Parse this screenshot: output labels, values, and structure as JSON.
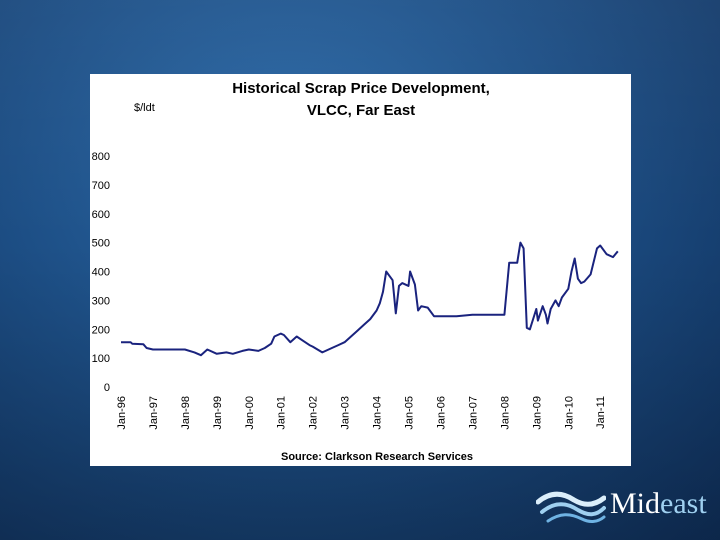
{
  "slide": {
    "brand_prefix": "Mid",
    "brand_suffix": "east",
    "colors": {
      "background": "#1d4f86",
      "panel": "#ffffff",
      "line": "#1a237e",
      "brand_accent": "#9fd0f0"
    },
    "icons": [
      "wave-logo-icon"
    ]
  },
  "chart_data": {
    "type": "line",
    "title_line1": "Historical Scrap Price Development,",
    "title_line2": "VLCC, Far East",
    "ylabel": "$/ldt",
    "source": "Source: Clarkson Research Services",
    "ylim": [
      0,
      800
    ],
    "yticks": [
      "0",
      "100",
      "200",
      "300",
      "400",
      "500",
      "600",
      "700",
      "800"
    ],
    "xlim": [
      1996.0,
      2011.65
    ],
    "xticks": [
      "Jan-96",
      "Jan-97",
      "Jan-98",
      "Jan-99",
      "Jan-00",
      "Jan-01",
      "Jan-02",
      "Jan-03",
      "Jan-04",
      "Jan-05",
      "Jan-06",
      "Jan-07",
      "Jan-08",
      "Jan-09",
      "Jan-10",
      "Jan-11"
    ],
    "series": [
      {
        "name": "VLCC Far East scrap price ($/ldt)",
        "x": [
          1996.0,
          1996.3,
          1996.35,
          1996.7,
          1996.8,
          1997.0,
          1997.5,
          1998.0,
          1998.3,
          1998.5,
          1998.7,
          1999.0,
          1999.3,
          1999.5,
          1999.8,
          2000.0,
          2000.3,
          2000.5,
          2000.7,
          2000.8,
          2001.0,
          2001.1,
          2001.3,
          2001.5,
          2001.7,
          2001.9,
          2002.0,
          2002.3,
          2002.6,
          2002.8,
          2003.0,
          2003.2,
          2003.4,
          2003.6,
          2003.8,
          2004.0,
          2004.1,
          2004.2,
          2004.3,
          2004.5,
          2004.6,
          2004.7,
          2004.8,
          2005.0,
          2005.05,
          2005.2,
          2005.3,
          2005.4,
          2005.6,
          2005.8,
          2006.0,
          2006.5,
          2007.0,
          2007.5,
          2008.0,
          2008.15,
          2008.4,
          2008.5,
          2008.6,
          2008.7,
          2008.8,
          2009.0,
          2009.05,
          2009.2,
          2009.3,
          2009.35,
          2009.45,
          2009.6,
          2009.7,
          2009.8,
          2010.0,
          2010.1,
          2010.2,
          2010.3,
          2010.4,
          2010.5,
          2010.7,
          2010.9,
          2011.0,
          2011.2,
          2011.4,
          2011.55
        ],
        "values": [
          155,
          155,
          150,
          148,
          135,
          130,
          130,
          130,
          120,
          110,
          130,
          115,
          120,
          115,
          125,
          130,
          125,
          135,
          150,
          175,
          185,
          180,
          155,
          175,
          160,
          145,
          140,
          120,
          135,
          145,
          155,
          175,
          195,
          215,
          235,
          265,
          290,
          330,
          400,
          370,
          255,
          350,
          360,
          350,
          400,
          355,
          265,
          280,
          275,
          245,
          245,
          245,
          250,
          250,
          250,
          430,
          430,
          500,
          480,
          205,
          200,
          270,
          230,
          280,
          250,
          220,
          270,
          300,
          280,
          310,
          340,
          400,
          445,
          375,
          360,
          365,
          390,
          480,
          490,
          460,
          450,
          470
        ]
      }
    ]
  }
}
